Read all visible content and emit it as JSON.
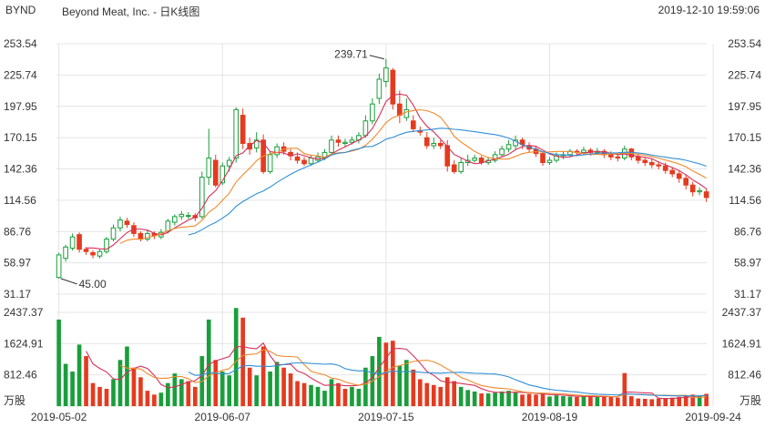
{
  "header": {
    "ticker": "BYND",
    "name": "Beyond Meat, Inc. - 日K线图",
    "timestamp": "2019-12-10 19:59:06"
  },
  "colors": {
    "up": "#1a9e3b",
    "down": "#e53a1f",
    "ma5": "#d6305a",
    "ma10": "#f08a2c",
    "ma20": "#2f8fd6",
    "grid": "#e4e4e4",
    "text": "#333333"
  },
  "chart_data": {
    "type": "candlestick",
    "x_ticks": [
      "2019-05-02",
      "2019-06-07",
      "2019-07-15",
      "2019-08-19",
      "2019-09-24"
    ],
    "x_tick_index": [
      0,
      24,
      48,
      72,
      96
    ],
    "price_axis_labels": [
      "253.54",
      "225.74",
      "197.95",
      "170.15",
      "142.36",
      "114.56",
      "86.76",
      "58.97",
      "31.17"
    ],
    "ylim_price": [
      31.17,
      253.54
    ],
    "volume_axis_labels": [
      "2437.37",
      "1624.91",
      "812.46"
    ],
    "volume_unit": "万股",
    "ylim_volume": [
      0,
      2437.37
    ],
    "max_label": "239.71",
    "min_label": "45.00",
    "candles": [
      [
        46,
        66,
        45,
        68
      ],
      [
        63,
        73,
        60,
        75
      ],
      [
        72,
        82,
        70,
        85
      ],
      [
        84,
        71,
        68,
        86
      ],
      [
        71,
        69,
        66,
        73
      ],
      [
        68,
        66,
        63,
        70
      ],
      [
        65,
        69,
        63,
        71
      ],
      [
        69,
        80,
        67,
        82
      ],
      [
        80,
        90,
        78,
        93
      ],
      [
        90,
        97,
        87,
        100
      ],
      [
        96,
        93,
        90,
        99
      ],
      [
        92,
        85,
        82,
        95
      ],
      [
        85,
        80,
        78,
        87
      ],
      [
        80,
        85,
        78,
        88
      ],
      [
        85,
        83,
        80,
        87
      ],
      [
        82,
        86,
        80,
        89
      ],
      [
        87,
        96,
        85,
        98
      ],
      [
        95,
        100,
        92,
        102
      ],
      [
        100,
        102,
        97,
        105
      ],
      [
        101,
        101,
        98,
        104
      ],
      [
        101,
        99,
        96,
        103
      ],
      [
        100,
        135,
        98,
        140
      ],
      [
        135,
        152,
        128,
        178
      ],
      [
        150,
        128,
        126,
        155
      ],
      [
        130,
        145,
        128,
        148
      ],
      [
        145,
        150,
        140,
        153
      ],
      [
        152,
        195,
        148,
        197
      ],
      [
        190,
        165,
        160,
        196
      ],
      [
        165,
        160,
        155,
        170
      ],
      [
        161,
        168,
        157,
        175
      ],
      [
        168,
        140,
        138,
        173
      ],
      [
        140,
        155,
        138,
        158
      ],
      [
        155,
        162,
        152,
        165
      ],
      [
        162,
        158,
        155,
        166
      ],
      [
        157,
        154,
        150,
        160
      ],
      [
        153,
        150,
        147,
        157
      ],
      [
        150,
        147,
        145,
        153
      ],
      [
        147,
        152,
        145,
        155
      ],
      [
        150,
        153,
        148,
        157
      ],
      [
        152,
        157,
        150,
        160
      ],
      [
        157,
        168,
        155,
        172
      ],
      [
        168,
        166,
        162,
        172
      ],
      [
        165,
        166,
        162,
        169
      ],
      [
        166,
        168,
        164,
        171
      ],
      [
        168,
        172,
        165,
        175
      ],
      [
        172,
        185,
        170,
        190
      ],
      [
        185,
        200,
        182,
        205
      ],
      [
        205,
        222,
        200,
        227
      ],
      [
        220,
        232,
        215,
        240
      ],
      [
        230,
        200,
        195,
        232
      ],
      [
        200,
        190,
        183,
        212
      ],
      [
        188,
        195,
        185,
        205
      ],
      [
        185,
        178,
        175,
        190
      ],
      [
        176,
        175,
        172,
        180
      ],
      [
        170,
        163,
        160,
        175
      ],
      [
        163,
        165,
        160,
        170
      ],
      [
        165,
        163,
        160,
        168
      ],
      [
        163,
        145,
        140,
        168
      ],
      [
        146,
        140,
        138,
        150
      ],
      [
        140,
        148,
        138,
        152
      ],
      [
        148,
        150,
        145,
        155
      ],
      [
        150,
        152,
        148,
        155
      ],
      [
        152,
        148,
        146,
        154
      ],
      [
        148,
        150,
        146,
        153
      ],
      [
        150,
        155,
        148,
        158
      ],
      [
        155,
        160,
        153,
        163
      ],
      [
        160,
        164,
        157,
        168
      ],
      [
        163,
        168,
        160,
        172
      ],
      [
        168,
        164,
        160,
        170
      ],
      [
        163,
        160,
        157,
        166
      ],
      [
        160,
        156,
        153,
        163
      ],
      [
        156,
        148,
        145,
        158
      ],
      [
        148,
        150,
        146,
        153
      ],
      [
        150,
        154,
        148,
        157
      ],
      [
        154,
        155,
        151,
        158
      ],
      [
        155,
        158,
        153,
        160
      ],
      [
        158,
        157,
        154,
        160
      ],
      [
        157,
        159,
        155,
        162
      ],
      [
        159,
        157,
        154,
        161
      ],
      [
        157,
        158,
        155,
        161
      ],
      [
        158,
        155,
        152,
        160
      ],
      [
        155,
        153,
        150,
        158
      ],
      [
        153,
        152,
        149,
        156
      ],
      [
        152,
        160,
        150,
        163
      ],
      [
        160,
        153,
        150,
        161
      ],
      [
        153,
        150,
        147,
        156
      ],
      [
        150,
        148,
        145,
        153
      ],
      [
        148,
        146,
        143,
        151
      ],
      [
        146,
        145,
        142,
        149
      ],
      [
        145,
        141,
        138,
        148
      ],
      [
        141,
        138,
        135,
        144
      ],
      [
        138,
        134,
        130,
        141
      ],
      [
        134,
        128,
        124,
        137
      ],
      [
        128,
        122,
        118,
        131
      ],
      [
        122,
        123,
        119,
        126
      ],
      [
        122,
        117,
        113,
        125
      ]
    ],
    "volumes": [
      [
        2250,
        1
      ],
      [
        1100,
        1
      ],
      [
        900,
        1
      ],
      [
        1600,
        1
      ],
      [
        1300,
        0
      ],
      [
        600,
        0
      ],
      [
        500,
        0
      ],
      [
        450,
        0
      ],
      [
        700,
        1
      ],
      [
        1200,
        1
      ],
      [
        1550,
        1
      ],
      [
        1000,
        0
      ],
      [
        750,
        0
      ],
      [
        400,
        0
      ],
      [
        300,
        0
      ],
      [
        350,
        1
      ],
      [
        600,
        1
      ],
      [
        850,
        1
      ],
      [
        700,
        1
      ],
      [
        650,
        0
      ],
      [
        500,
        0
      ],
      [
        1300,
        1
      ],
      [
        2250,
        1
      ],
      [
        1200,
        0
      ],
      [
        900,
        1
      ],
      [
        800,
        1
      ],
      [
        2550,
        1
      ],
      [
        2300,
        0
      ],
      [
        1000,
        0
      ],
      [
        800,
        1
      ],
      [
        1550,
        0
      ],
      [
        900,
        1
      ],
      [
        1150,
        1
      ],
      [
        1000,
        0
      ],
      [
        850,
        0
      ],
      [
        650,
        0
      ],
      [
        600,
        0
      ],
      [
        550,
        1
      ],
      [
        500,
        1
      ],
      [
        400,
        1
      ],
      [
        700,
        1
      ],
      [
        600,
        0
      ],
      [
        450,
        0
      ],
      [
        500,
        1
      ],
      [
        450,
        1
      ],
      [
        1000,
        1
      ],
      [
        1300,
        1
      ],
      [
        1800,
        1
      ],
      [
        1650,
        0
      ],
      [
        1700,
        0
      ],
      [
        1050,
        1
      ],
      [
        1200,
        1
      ],
      [
        950,
        0
      ],
      [
        700,
        0
      ],
      [
        600,
        0
      ],
      [
        550,
        0
      ],
      [
        500,
        0
      ],
      [
        750,
        0
      ],
      [
        650,
        0
      ],
      [
        500,
        1
      ],
      [
        420,
        1
      ],
      [
        380,
        1
      ],
      [
        330,
        0
      ],
      [
        330,
        1
      ],
      [
        350,
        1
      ],
      [
        380,
        1
      ],
      [
        400,
        1
      ],
      [
        350,
        1
      ],
      [
        300,
        0
      ],
      [
        320,
        0
      ],
      [
        300,
        0
      ],
      [
        330,
        0
      ],
      [
        250,
        1
      ],
      [
        280,
        1
      ],
      [
        260,
        1
      ],
      [
        250,
        1
      ],
      [
        240,
        0
      ],
      [
        250,
        1
      ],
      [
        260,
        0
      ],
      [
        240,
        1
      ],
      [
        250,
        0
      ],
      [
        240,
        0
      ],
      [
        220,
        0
      ],
      [
        860,
        0
      ],
      [
        260,
        0
      ],
      [
        200,
        0
      ],
      [
        190,
        0
      ],
      [
        180,
        0
      ],
      [
        200,
        0
      ],
      [
        210,
        0
      ],
      [
        220,
        0
      ],
      [
        240,
        0
      ],
      [
        280,
        0
      ],
      [
        300,
        0
      ],
      [
        280,
        1
      ],
      [
        320,
        0
      ]
    ]
  }
}
